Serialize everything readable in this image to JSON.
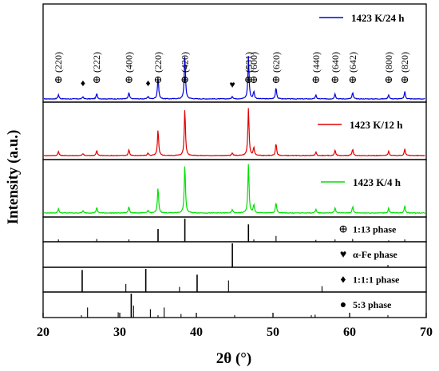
{
  "chart_data": {
    "type": "line",
    "title": "",
    "xlabel": "2θ (°)",
    "ylabel": "Intensity (a.u.)",
    "xlim": [
      20,
      70
    ],
    "xticks": [
      20,
      30,
      40,
      50,
      60,
      70
    ],
    "xtick_labels": [
      "20",
      "30",
      "40",
      "50",
      "60",
      "70"
    ],
    "grid": false,
    "series": [
      {
        "name": "1423 K/24 h",
        "color": "#0000dd",
        "peaks": [
          {
            "x": 22.0,
            "h": 0.08
          },
          {
            "x": 25.2,
            "h": 0.04
          },
          {
            "x": 27.0,
            "h": 0.1
          },
          {
            "x": 31.2,
            "h": 0.12
          },
          {
            "x": 33.7,
            "h": 0.05
          },
          {
            "x": 35.0,
            "h": 0.42
          },
          {
            "x": 38.5,
            "h": 0.85
          },
          {
            "x": 44.7,
            "h": 0.05
          },
          {
            "x": 46.8,
            "h": 0.82
          },
          {
            "x": 47.5,
            "h": 0.14
          },
          {
            "x": 50.4,
            "h": 0.22
          },
          {
            "x": 55.6,
            "h": 0.07
          },
          {
            "x": 58.1,
            "h": 0.1
          },
          {
            "x": 60.4,
            "h": 0.12
          },
          {
            "x": 65.1,
            "h": 0.08
          },
          {
            "x": 67.2,
            "h": 0.14
          }
        ]
      },
      {
        "name": "1423 K/12 h",
        "color": "#e00000",
        "peaks": [
          {
            "x": 22.0,
            "h": 0.08
          },
          {
            "x": 25.2,
            "h": 0.04
          },
          {
            "x": 27.0,
            "h": 0.1
          },
          {
            "x": 31.2,
            "h": 0.12
          },
          {
            "x": 33.7,
            "h": 0.05
          },
          {
            "x": 35.0,
            "h": 0.52
          },
          {
            "x": 38.5,
            "h": 0.95
          },
          {
            "x": 44.7,
            "h": 0.05
          },
          {
            "x": 46.8,
            "h": 0.95
          },
          {
            "x": 47.5,
            "h": 0.16
          },
          {
            "x": 50.4,
            "h": 0.24
          },
          {
            "x": 55.6,
            "h": 0.07
          },
          {
            "x": 58.1,
            "h": 0.11
          },
          {
            "x": 60.4,
            "h": 0.13
          },
          {
            "x": 65.1,
            "h": 0.09
          },
          {
            "x": 67.2,
            "h": 0.14
          }
        ]
      },
      {
        "name": "1423 K/4 h",
        "color": "#00e000",
        "peaks": [
          {
            "x": 22.0,
            "h": 0.08
          },
          {
            "x": 25.2,
            "h": 0.04
          },
          {
            "x": 27.0,
            "h": 0.1
          },
          {
            "x": 31.2,
            "h": 0.12
          },
          {
            "x": 33.7,
            "h": 0.05
          },
          {
            "x": 35.0,
            "h": 0.48
          },
          {
            "x": 38.5,
            "h": 0.92
          },
          {
            "x": 44.7,
            "h": 0.06
          },
          {
            "x": 46.8,
            "h": 0.92
          },
          {
            "x": 47.5,
            "h": 0.15
          },
          {
            "x": 50.4,
            "h": 0.2
          },
          {
            "x": 55.6,
            "h": 0.07
          },
          {
            "x": 58.1,
            "h": 0.1
          },
          {
            "x": 60.4,
            "h": 0.12
          },
          {
            "x": 65.1,
            "h": 0.09
          },
          {
            "x": 67.2,
            "h": 0.14
          }
        ]
      }
    ],
    "annotations": [
      {
        "x": 22.0,
        "symbol": "⊕",
        "label": "(220)"
      },
      {
        "x": 25.2,
        "symbol": "♦",
        "label": ""
      },
      {
        "x": 27.0,
        "symbol": "⊕",
        "label": "(222)"
      },
      {
        "x": 31.2,
        "symbol": "⊕",
        "label": "(400)"
      },
      {
        "x": 33.7,
        "symbol": "♦",
        "label": ""
      },
      {
        "x": 35.0,
        "symbol": "⊕",
        "label": "(220)"
      },
      {
        "x": 38.5,
        "symbol": "⊕",
        "label": "(420)"
      },
      {
        "x": 44.7,
        "symbol": "♥",
        "label": ""
      },
      {
        "x": 46.8,
        "symbol": "⊕",
        "label": "(531)"
      },
      {
        "x": 47.5,
        "symbol": "⊕",
        "label": "(600)"
      },
      {
        "x": 50.4,
        "symbol": "⊕",
        "label": "(620)"
      },
      {
        "x": 55.6,
        "symbol": "⊕",
        "label": "(440)"
      },
      {
        "x": 58.1,
        "symbol": "⊕",
        "label": "(640)"
      },
      {
        "x": 60.4,
        "symbol": "⊕",
        "label": "(642)"
      },
      {
        "x": 65.1,
        "symbol": "⊕",
        "label": "(800)"
      },
      {
        "x": 67.2,
        "symbol": "⊕",
        "label": "(820)"
      }
    ],
    "reference_patterns": [
      {
        "name": "1:13 phase",
        "symbol": "⊕",
        "lines": [
          {
            "x": 22.0,
            "h": 0.1
          },
          {
            "x": 27.0,
            "h": 0.12
          },
          {
            "x": 31.2,
            "h": 0.1
          },
          {
            "x": 35.0,
            "h": 0.55
          },
          {
            "x": 38.5,
            "h": 1.0
          },
          {
            "x": 46.8,
            "h": 0.75
          },
          {
            "x": 47.5,
            "h": 0.1
          },
          {
            "x": 50.4,
            "h": 0.25
          },
          {
            "x": 55.6,
            "h": 0.08
          },
          {
            "x": 58.1,
            "h": 0.1
          },
          {
            "x": 60.4,
            "h": 0.12
          },
          {
            "x": 65.1,
            "h": 0.06
          },
          {
            "x": 67.2,
            "h": 0.1
          }
        ]
      },
      {
        "name": "α-Fe phase",
        "symbol": "♥",
        "lines": [
          {
            "x": 44.7,
            "h": 1.0
          },
          {
            "x": 65.0,
            "h": 0.1
          }
        ]
      },
      {
        "name": "1:1:1 phase",
        "symbol": "♦",
        "lines": [
          {
            "x": 25.1,
            "h": 0.95
          },
          {
            "x": 30.8,
            "h": 0.35
          },
          {
            "x": 33.4,
            "h": 1.0
          },
          {
            "x": 37.8,
            "h": 0.22
          },
          {
            "x": 40.1,
            "h": 0.75
          },
          {
            "x": 44.2,
            "h": 0.5
          },
          {
            "x": 56.4,
            "h": 0.25
          }
        ]
      },
      {
        "name": "5:3 phase",
        "symbol": "●",
        "lines": [
          {
            "x": 25.8,
            "h": 0.42
          },
          {
            "x": 29.8,
            "h": 0.22
          },
          {
            "x": 31.5,
            "h": 1.0
          },
          {
            "x": 31.8,
            "h": 0.5
          },
          {
            "x": 34.0,
            "h": 0.35
          },
          {
            "x": 35.8,
            "h": 0.42
          },
          {
            "x": 38.0,
            "h": 0.15
          },
          {
            "x": 55.5,
            "h": 0.12
          }
        ]
      }
    ]
  }
}
